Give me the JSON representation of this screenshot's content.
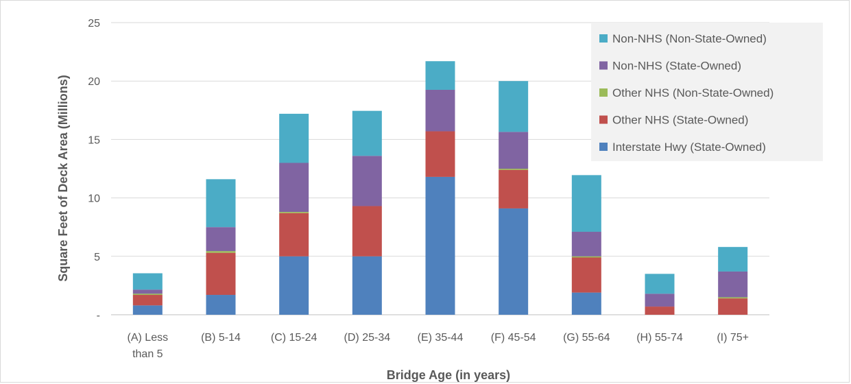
{
  "chart_data": {
    "type": "bar",
    "stacked": true,
    "categories": [
      [
        "(A) Less",
        "than 5"
      ],
      [
        "(B) 5-14"
      ],
      [
        "(C) 15-24"
      ],
      [
        "(D) 25-34"
      ],
      [
        "(E) 35-44"
      ],
      [
        "(F) 45-54"
      ],
      [
        "(G) 55-64"
      ],
      [
        "(H) 55-74"
      ],
      [
        "(I) 75+"
      ]
    ],
    "series": [
      {
        "name": "Interstate Hwy (State-Owned)",
        "color": "#4f81bd",
        "values": [
          0.8,
          1.7,
          5.0,
          5.0,
          11.8,
          9.1,
          1.9,
          0.0,
          0.0
        ]
      },
      {
        "name": "Other NHS (State-Owned)",
        "color": "#c0504d",
        "values": [
          0.9,
          3.6,
          3.7,
          4.3,
          3.9,
          3.3,
          3.0,
          0.7,
          1.4
        ]
      },
      {
        "name": "Other NHS (Non-State-Owned)",
        "color": "#9bbb59",
        "values": [
          0.1,
          0.15,
          0.1,
          0.0,
          0.0,
          0.1,
          0.1,
          0.0,
          0.1
        ]
      },
      {
        "name": "Non-NHS (State-Owned)",
        "color": "#8064a2",
        "values": [
          0.35,
          2.05,
          4.2,
          4.3,
          3.55,
          3.15,
          2.1,
          1.1,
          2.2
        ]
      },
      {
        "name": "Non-NHS (Non-State-Owned)",
        "color": "#4bacc6",
        "values": [
          1.4,
          4.1,
          4.2,
          3.85,
          2.45,
          4.35,
          4.85,
          1.7,
          2.1
        ]
      }
    ],
    "xlabel": "Bridge Age (in years)",
    "ylabel": "Square Feet of Deck Area  (Millions)",
    "ylim": [
      0,
      25
    ],
    "yticks": [
      0,
      5,
      10,
      15,
      20,
      25
    ],
    "ytick_labels": [
      "-",
      "5",
      "10",
      "15",
      "20",
      "25"
    ],
    "grid": true,
    "legend_position": "top-right"
  }
}
